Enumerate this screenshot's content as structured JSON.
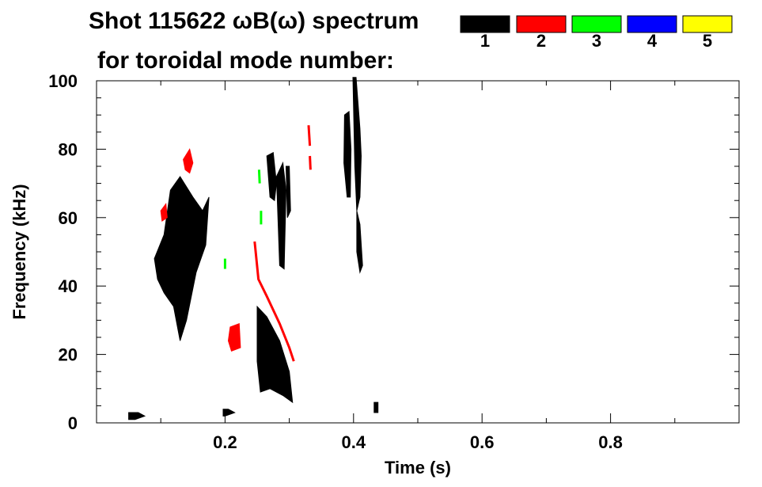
{
  "chart_data": {
    "type": "heatmap",
    "title_line1": "Shot 115622 ωB(ω) spectrum",
    "title_line2": "for toroidal mode number:",
    "xlabel": "Time (s)",
    "ylabel": "Frequency (kHz)",
    "xlim": [
      0.0,
      1.0
    ],
    "ylim": [
      0,
      100
    ],
    "x_ticks": [
      {
        "value": 0.2,
        "label": "0.2"
      },
      {
        "value": 0.4,
        "label": "0.4"
      },
      {
        "value": 0.6,
        "label": "0.6"
      },
      {
        "value": 0.8,
        "label": "0.8"
      }
    ],
    "y_ticks": [
      {
        "value": 0,
        "label": "0"
      },
      {
        "value": 20,
        "label": "20"
      },
      {
        "value": 40,
        "label": "40"
      },
      {
        "value": 60,
        "label": "60"
      },
      {
        "value": 80,
        "label": "80"
      },
      {
        "value": 100,
        "label": "100"
      }
    ],
    "legend": [
      {
        "label": "1",
        "color": "#000000"
      },
      {
        "label": "2",
        "color": "#ff0000"
      },
      {
        "label": "3",
        "color": "#00ff00"
      },
      {
        "label": "4",
        "color": "#0000ff"
      },
      {
        "label": "5",
        "color": "#ffff00"
      }
    ],
    "regions": [
      {
        "mode": "1",
        "points": [
          [
            0.09,
            48
          ],
          [
            0.105,
            55
          ],
          [
            0.115,
            68
          ],
          [
            0.13,
            72
          ],
          [
            0.15,
            66
          ],
          [
            0.165,
            62
          ],
          [
            0.175,
            66
          ],
          [
            0.17,
            52
          ],
          [
            0.155,
            44
          ],
          [
            0.14,
            30
          ],
          [
            0.13,
            24
          ],
          [
            0.12,
            34
          ],
          [
            0.105,
            38
          ],
          [
            0.095,
            42
          ]
        ]
      },
      {
        "mode": "1",
        "points": [
          [
            0.25,
            34
          ],
          [
            0.265,
            31
          ],
          [
            0.285,
            24
          ],
          [
            0.3,
            15
          ],
          [
            0.305,
            6
          ],
          [
            0.29,
            8
          ],
          [
            0.27,
            10
          ],
          [
            0.255,
            9
          ],
          [
            0.25,
            18
          ]
        ]
      },
      {
        "mode": "1",
        "points": [
          [
            0.265,
            78
          ],
          [
            0.275,
            79
          ],
          [
            0.28,
            70
          ],
          [
            0.277,
            65
          ],
          [
            0.27,
            66
          ]
        ]
      },
      {
        "mode": "1",
        "points": [
          [
            0.28,
            72
          ],
          [
            0.29,
            76
          ],
          [
            0.295,
            68
          ],
          [
            0.292,
            45
          ],
          [
            0.285,
            46
          ]
        ]
      },
      {
        "mode": "1",
        "points": [
          [
            0.295,
            75
          ],
          [
            0.3,
            75
          ],
          [
            0.302,
            62
          ],
          [
            0.297,
            60
          ]
        ]
      },
      {
        "mode": "1",
        "points": [
          [
            0.386,
            90
          ],
          [
            0.393,
            91
          ],
          [
            0.396,
            80
          ],
          [
            0.395,
            66
          ],
          [
            0.39,
            66
          ],
          [
            0.385,
            76
          ]
        ]
      },
      {
        "mode": "1",
        "points": [
          [
            0.399,
            101
          ],
          [
            0.404,
            101
          ],
          [
            0.41,
            86
          ],
          [
            0.412,
            78
          ],
          [
            0.41,
            66
          ],
          [
            0.405,
            62
          ],
          [
            0.402,
            75
          ]
        ]
      },
      {
        "mode": "1",
        "points": [
          [
            0.405,
            62
          ],
          [
            0.41,
            58
          ],
          [
            0.414,
            46
          ],
          [
            0.41,
            44
          ],
          [
            0.405,
            50
          ]
        ]
      },
      {
        "mode": "1",
        "points": [
          [
            0.05,
            3
          ],
          [
            0.065,
            3
          ],
          [
            0.075,
            2
          ],
          [
            0.06,
            1
          ],
          [
            0.05,
            1
          ]
        ]
      },
      {
        "mode": "1",
        "points": [
          [
            0.197,
            4
          ],
          [
            0.205,
            4
          ],
          [
            0.215,
            3
          ],
          [
            0.2,
            2
          ],
          [
            0.197,
            2
          ]
        ]
      },
      {
        "mode": "1",
        "points": [
          [
            0.432,
            6
          ],
          [
            0.438,
            6
          ],
          [
            0.438,
            3
          ],
          [
            0.432,
            3
          ]
        ]
      },
      {
        "mode": "2",
        "points": [
          [
            0.135,
            77
          ],
          [
            0.145,
            80
          ],
          [
            0.15,
            76
          ],
          [
            0.145,
            73
          ],
          [
            0.138,
            74
          ]
        ]
      },
      {
        "mode": "2",
        "points": [
          [
            0.1,
            62
          ],
          [
            0.108,
            64
          ],
          [
            0.11,
            60
          ],
          [
            0.102,
            59
          ]
        ]
      },
      {
        "mode": "2",
        "points": [
          [
            0.208,
            28
          ],
          [
            0.222,
            29
          ],
          [
            0.224,
            22
          ],
          [
            0.21,
            21
          ],
          [
            0.205,
            24
          ]
        ]
      }
    ],
    "lines": [
      {
        "mode": "2",
        "points": [
          [
            0.246,
            53
          ],
          [
            0.252,
            42
          ],
          [
            0.265,
            37
          ],
          [
            0.285,
            29
          ],
          [
            0.3,
            22
          ],
          [
            0.307,
            18
          ]
        ]
      },
      {
        "mode": "2",
        "points": [
          [
            0.33,
            87
          ],
          [
            0.332,
            81
          ]
        ]
      },
      {
        "mode": "2",
        "points": [
          [
            0.332,
            78
          ],
          [
            0.333,
            74
          ]
        ]
      },
      {
        "mode": "3",
        "points": [
          [
            0.253,
            74
          ],
          [
            0.254,
            70
          ]
        ]
      },
      {
        "mode": "3",
        "points": [
          [
            0.256,
            62
          ],
          [
            0.256,
            58
          ]
        ]
      },
      {
        "mode": "3",
        "points": [
          [
            0.2,
            48
          ],
          [
            0.2,
            45
          ]
        ]
      }
    ]
  }
}
